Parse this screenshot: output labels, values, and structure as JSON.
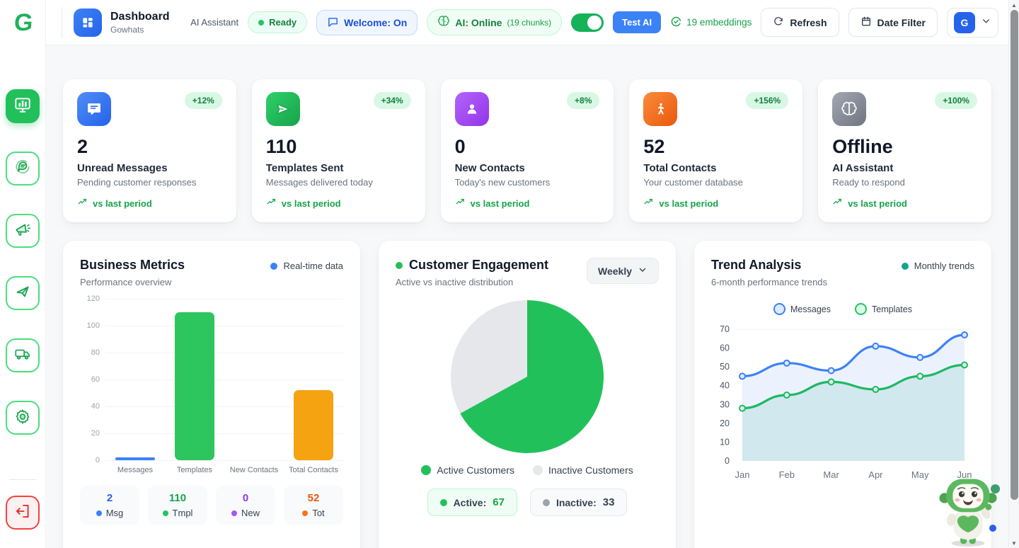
{
  "sidebar": {
    "logo_letter": "G",
    "items": [
      {
        "icon": "dashboard-monitor-icon",
        "active": true
      },
      {
        "icon": "chat-bubble-icon",
        "active": false
      },
      {
        "icon": "megaphone-icon",
        "active": false
      },
      {
        "icon": "paper-plane-icon",
        "active": false
      },
      {
        "icon": "truck-icon",
        "active": false
      },
      {
        "icon": "gear-icon",
        "active": false
      },
      {
        "icon": "logout-icon",
        "active": false
      }
    ]
  },
  "header": {
    "title": "Dashboard",
    "subtitle": "Gowhats",
    "ai_assistant_label": "AI Assistant",
    "ready_badge": "Ready",
    "welcome_badge": "Welcome: On",
    "ai_online_badge": "AI: Online",
    "ai_online_chunks": "(19 chunks)",
    "test_ai_button": "Test AI",
    "embeddings_label": "19 embeddings",
    "refresh_button": "Refresh",
    "date_filter_button": "Date Filter",
    "avatar_letter": "G"
  },
  "stat_cards": [
    {
      "icon": "chat-message-icon",
      "delta": "+12%",
      "value": "2",
      "label": "Unread Messages",
      "description": "Pending customer responses",
      "footer": "vs last period"
    },
    {
      "icon": "send-icon",
      "delta": "+34%",
      "value": "110",
      "label": "Templates Sent",
      "description": "Messages delivered today",
      "footer": "vs last period"
    },
    {
      "icon": "person-icon",
      "delta": "+8%",
      "value": "0",
      "label": "New Contacts",
      "description": "Today's new customers",
      "footer": "vs last period"
    },
    {
      "icon": "person-walking-icon",
      "delta": "+156%",
      "value": "52",
      "label": "Total Contacts",
      "description": "Your customer database",
      "footer": "vs last period"
    },
    {
      "icon": "brain-icon",
      "delta": "+100%",
      "value": "Offline",
      "label": "AI Assistant",
      "description": "Ready to respond",
      "footer": "vs last period"
    }
  ],
  "business_metrics": {
    "title": "Business Metrics",
    "subtitle": "Performance overview",
    "legend": "Real-time data",
    "legend_color": "#3b82f6",
    "chips": [
      {
        "value": "2",
        "label": "Msg",
        "value_color": "#2563eb",
        "dot_color": "#3b82f6"
      },
      {
        "value": "110",
        "label": "Tmpl",
        "value_color": "#16a34a",
        "dot_color": "#22c55e"
      },
      {
        "value": "0",
        "label": "New",
        "value_color": "#9333ea",
        "dot_color": "#a855f7"
      },
      {
        "value": "52",
        "label": "Tot",
        "value_color": "#ea580c",
        "dot_color": "#f97316"
      }
    ]
  },
  "customer_engagement": {
    "title": "Customer Engagement",
    "subtitle": "Active vs inactive distribution",
    "period_selector": "Weekly",
    "legend": [
      "Active Customers",
      "Inactive Customers"
    ],
    "badges": [
      {
        "label": "Active:",
        "value": "67"
      },
      {
        "label": "Inactive:",
        "value": "33"
      }
    ]
  },
  "trend_analysis": {
    "title": "Trend Analysis",
    "subtitle": "6-month performance trends",
    "legend": "Monthly trends",
    "legend_color": "#14a38b",
    "series_legend": [
      "Messages",
      "Templates"
    ]
  },
  "chart_data": [
    {
      "type": "bar",
      "title": "Business Metrics",
      "categories": [
        "Messages",
        "Templates",
        "New Contacts",
        "Total Contacts"
      ],
      "values": [
        2,
        110,
        0,
        52
      ],
      "colors": [
        "#3b82f6",
        "#2dc55e",
        "#a855f7",
        "#f5a311"
      ],
      "ylabel": "",
      "xlabel": "",
      "ylim": [
        0,
        120
      ],
      "yticks": [
        0,
        20,
        40,
        60,
        80,
        100,
        120
      ],
      "grid": true,
      "legend_position": "top-right"
    },
    {
      "type": "pie",
      "title": "Customer Engagement",
      "labels": [
        "Active Customers",
        "Inactive Customers"
      ],
      "values": [
        67,
        33
      ],
      "colors": [
        "#22c05b",
        "#e5e7eb"
      ],
      "start_angle_deg": 0,
      "direction": "clockwise"
    },
    {
      "type": "line",
      "title": "Trend Analysis",
      "x": [
        "Jan",
        "Feb",
        "Mar",
        "Apr",
        "May",
        "Jun"
      ],
      "series": [
        {
          "name": "Messages",
          "values": [
            45,
            52,
            48,
            61,
            55,
            67
          ],
          "color": "#3b82f6",
          "fill": "rgba(59,130,246,0.10)"
        },
        {
          "name": "Templates",
          "values": [
            28,
            35,
            42,
            38,
            45,
            51
          ],
          "color": "#1fb863",
          "fill": "rgba(23,166,115,0.12)"
        }
      ],
      "ylim": [
        0,
        70
      ],
      "yticks": [
        0,
        10,
        20,
        30,
        40,
        50,
        60,
        70
      ],
      "grid": false,
      "legend_position": "top-center"
    }
  ]
}
